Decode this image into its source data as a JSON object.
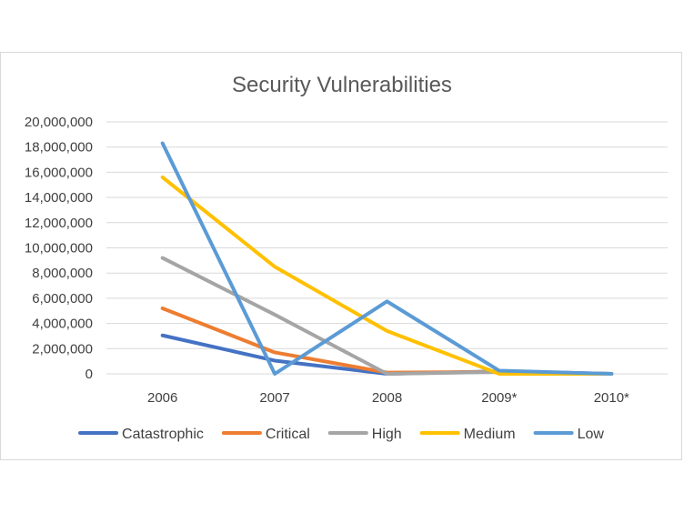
{
  "chart_data": {
    "type": "line",
    "title": "Security Vulnerabilities",
    "categories": [
      "2006",
      "2007",
      "2008",
      "2009*",
      "2010*"
    ],
    "ylim": [
      0,
      20000000
    ],
    "yticks": [
      0,
      2000000,
      4000000,
      6000000,
      8000000,
      10000000,
      12000000,
      14000000,
      16000000,
      18000000,
      20000000
    ],
    "ytick_labels": [
      "0",
      "2,000,000",
      "4,000,000",
      "6,000,000",
      "8,000,000",
      "10,000,000",
      "12,000,000",
      "14,000,000",
      "16,000,000",
      "18,000,000",
      "20,000,000"
    ],
    "grid": true,
    "legend_position": "bottom",
    "xlabel": "",
    "ylabel": "",
    "series": [
      {
        "name": "Catastrophic",
        "color": "#4472C4",
        "values": [
          3050000,
          1050000,
          0,
          200000,
          0
        ]
      },
      {
        "name": "Critical",
        "color": "#ED7D31",
        "values": [
          5200000,
          1700000,
          100000,
          150000,
          0
        ]
      },
      {
        "name": "High",
        "color": "#A5A5A5",
        "values": [
          9200000,
          4700000,
          0,
          150000,
          0
        ]
      },
      {
        "name": "Medium",
        "color": "#FFC000",
        "values": [
          15600000,
          8500000,
          3400000,
          0,
          0
        ]
      },
      {
        "name": "Low",
        "color": "#5B9BD5",
        "values": [
          18300000,
          0,
          5750000,
          250000,
          0
        ]
      }
    ]
  }
}
